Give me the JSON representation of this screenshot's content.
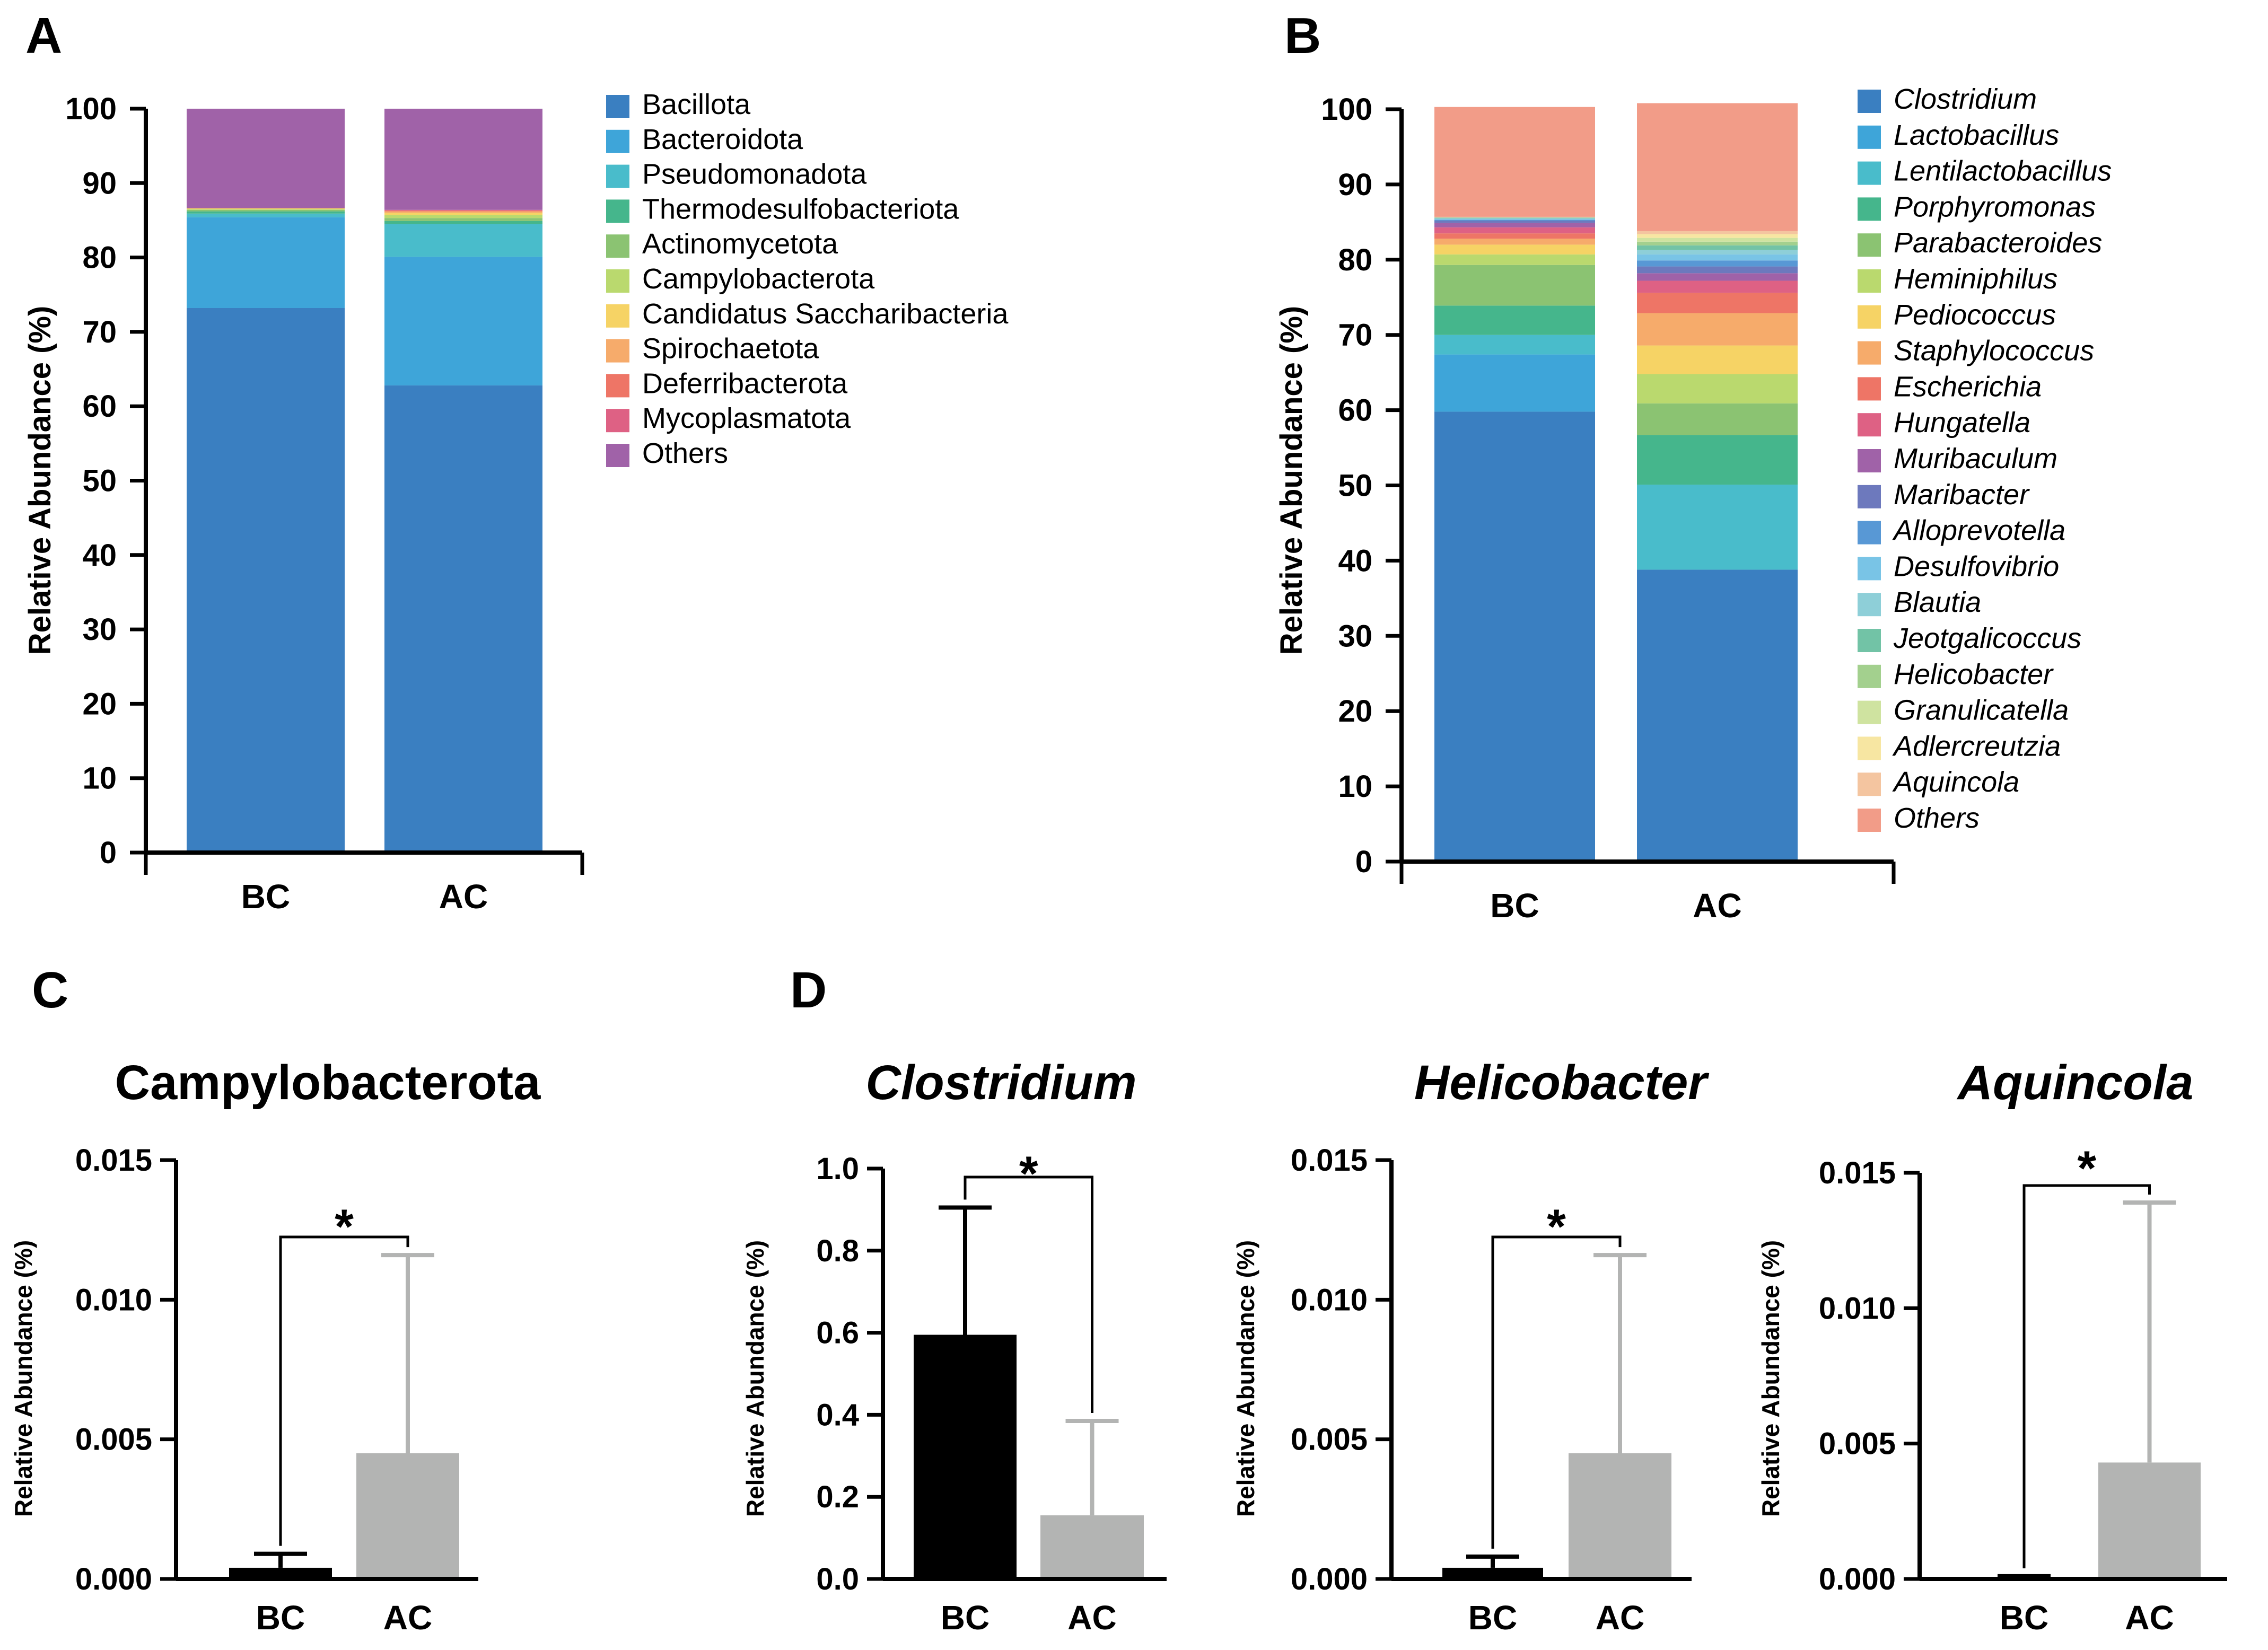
{
  "panels": [
    {
      "letter": "A"
    },
    {
      "letter": "B"
    },
    {
      "letter": "C"
    },
    {
      "letter": "D"
    }
  ],
  "colors": {
    "bc_bar": "#000000",
    "ac_bar": "#b3b4b3",
    "ac_error": "#b3b4b3"
  },
  "chart_data": [
    {
      "id": "A",
      "type": "bar",
      "stacked": true,
      "title": "",
      "xlabel": "",
      "ylabel": "Relative Abundance (%)",
      "ylim": [
        0,
        100
      ],
      "yticks": [
        "0",
        "10",
        "20",
        "30",
        "40",
        "50",
        "60",
        "70",
        "80",
        "90",
        "100"
      ],
      "categories": [
        "BC",
        "AC"
      ],
      "series": [
        {
          "name": "Bacillota",
          "color": "#3a7fc1",
          "values": [
            73.2,
            62.8
          ]
        },
        {
          "name": "Bacteroidota",
          "color": "#3ea5d9",
          "values": [
            12.2,
            17.3
          ]
        },
        {
          "name": "Pseudomonadota",
          "color": "#49bccb",
          "values": [
            0.5,
            4.4
          ]
        },
        {
          "name": "Thermodesulfobacteriota",
          "color": "#45b68c",
          "values": [
            0.3,
            0.4
          ]
        },
        {
          "name": "Actinomycetota",
          "color": "#8bc372",
          "values": [
            0.2,
            0.4
          ]
        },
        {
          "name": "Campylobacterota",
          "color": "#bad96e",
          "values": [
            0.1,
            0.4
          ]
        },
        {
          "name": "Candidatus Saccharibacteria",
          "color": "#f6d365",
          "values": [
            0.1,
            0.3
          ]
        },
        {
          "name": "Spirochaetota",
          "color": "#f6ab6b",
          "values": [
            0.0,
            0.2
          ]
        },
        {
          "name": "Deferribacterota",
          "color": "#ee7566",
          "values": [
            0.0,
            0.1
          ]
        },
        {
          "name": "Mycoplasmatota",
          "color": "#de6184",
          "values": [
            0.0,
            0.1
          ]
        },
        {
          "name": "Others",
          "color": "#a062a8",
          "values": [
            13.4,
            13.6
          ]
        }
      ]
    },
    {
      "id": "B",
      "type": "bar",
      "stacked": true,
      "title": "",
      "xlabel": "",
      "ylabel": "Relative Abundance (%)",
      "ylim": [
        0,
        100
      ],
      "yticks": [
        "0",
        "10",
        "20",
        "30",
        "40",
        "50",
        "60",
        "70",
        "80",
        "90",
        "100"
      ],
      "categories": [
        "BC",
        "AC"
      ],
      "series": [
        {
          "name": "Clostridium",
          "color": "#3a7fc1",
          "values": [
            59.8,
            38.8
          ]
        },
        {
          "name": "Lactobacillus",
          "color": "#3ea5d9",
          "values": [
            7.6,
            0.0
          ]
        },
        {
          "name": "Lentilactobacillus",
          "color": "#49bccb",
          "values": [
            2.6,
            11.3
          ]
        },
        {
          "name": "Porphyromonas",
          "color": "#45b68c",
          "values": [
            3.9,
            6.6
          ]
        },
        {
          "name": "Parabacteroides",
          "color": "#8bc372",
          "values": [
            5.4,
            4.2
          ]
        },
        {
          "name": "Heminiphilus",
          "color": "#bad96e",
          "values": [
            1.4,
            3.9
          ]
        },
        {
          "name": "Pediococcus",
          "color": "#f6d365",
          "values": [
            1.3,
            3.8
          ]
        },
        {
          "name": "Staphylococcus",
          "color": "#f6ab6b",
          "values": [
            0.8,
            4.3
          ]
        },
        {
          "name": "Escherichia",
          "color": "#ee7566",
          "values": [
            0.7,
            2.7
          ]
        },
        {
          "name": "Hungatella",
          "color": "#de6184",
          "values": [
            0.8,
            1.6
          ]
        },
        {
          "name": "Muribaculum",
          "color": "#a062a8",
          "values": [
            0.6,
            1.0
          ]
        },
        {
          "name": "Maribacter",
          "color": "#6d79bd",
          "values": [
            0.3,
            0.9
          ]
        },
        {
          "name": "Alloprevotella",
          "color": "#5898d5",
          "values": [
            0.1,
            0.8
          ]
        },
        {
          "name": "Desulfovibrio",
          "color": "#79c4e6",
          "values": [
            0.1,
            0.8
          ]
        },
        {
          "name": "Blautia",
          "color": "#8ecfd8",
          "values": [
            0.1,
            0.6
          ]
        },
        {
          "name": "Jeotgalicoccus",
          "color": "#72c3a6",
          "values": [
            0.1,
            0.6
          ]
        },
        {
          "name": "Helicobacter",
          "color": "#a3d08e",
          "values": [
            0.0,
            0.5
          ]
        },
        {
          "name": "Granulicatella",
          "color": "#cfe3a0",
          "values": [
            0.0,
            0.5
          ]
        },
        {
          "name": "Adlercreutzia",
          "color": "#f7e6a2",
          "values": [
            0.0,
            0.5
          ]
        },
        {
          "name": "Aquincola",
          "color": "#f4c5a0",
          "values": [
            0.1,
            0.4
          ]
        },
        {
          "name": "Others",
          "color": "#f29c88",
          "values": [
            14.6,
            17.0
          ]
        }
      ]
    },
    {
      "id": "C1",
      "type": "bar",
      "title": "Campylobacterota",
      "title_italic": false,
      "xlabel": "",
      "ylabel": "Relative Abundance (%)",
      "ylim": [
        0,
        0.015
      ],
      "yticks": [
        "0.000",
        "0.005",
        "0.010",
        "0.015"
      ],
      "categories": [
        "BC",
        "AC"
      ],
      "values": [
        0.0004,
        0.0045
      ],
      "error": [
        0.0009,
        0.0116
      ],
      "significance": "*"
    },
    {
      "id": "D1",
      "type": "bar",
      "title": "Clostridium",
      "title_italic": true,
      "xlabel": "",
      "ylabel": "Relative Abundance (%)",
      "ylim": [
        0,
        1.0
      ],
      "yticks": [
        "0.0",
        "0.2",
        "0.4",
        "0.6",
        "0.8",
        "1.0"
      ],
      "categories": [
        "BC",
        "AC"
      ],
      "values": [
        0.595,
        0.155
      ],
      "error": [
        0.905,
        0.385
      ],
      "significance": "*"
    },
    {
      "id": "D2",
      "type": "bar",
      "title": "Helicobacter",
      "title_italic": true,
      "xlabel": "",
      "ylabel": "Relative Abundance (%)",
      "ylim": [
        0,
        0.015
      ],
      "yticks": [
        "0.000",
        "0.005",
        "0.010",
        "0.015"
      ],
      "categories": [
        "BC",
        "AC"
      ],
      "values": [
        0.0004,
        0.0045
      ],
      "error": [
        0.0008,
        0.0116
      ],
      "significance": "*"
    },
    {
      "id": "D3",
      "type": "bar",
      "title": "Aquincola",
      "title_italic": true,
      "xlabel": "",
      "ylabel": "Relative Abundance (%)",
      "ylim": [
        0,
        0.015
      ],
      "yticks": [
        "0.000",
        "0.005",
        "0.010",
        "0.015"
      ],
      "categories": [
        "BC",
        "AC"
      ],
      "values": [
        5e-05,
        0.0043
      ],
      "error": [
        0.0001,
        0.0139
      ],
      "significance": "*"
    }
  ]
}
